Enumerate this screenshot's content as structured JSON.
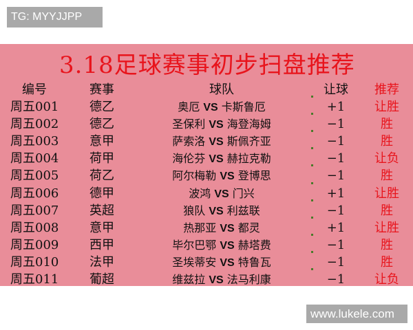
{
  "watermark_top": "TG: MYYJJPP",
  "watermark_bottom": "www.lukele.com",
  "title": "3.18足球赛事初步扫盘推荐",
  "headers": {
    "code": "编号",
    "league": "赛事",
    "teams": "球队",
    "handicap": "让球",
    "recommend": "推荐"
  },
  "vs": "VS",
  "rows": [
    {
      "code": "周五001",
      "league": "德乙",
      "home": "奥厄",
      "away": "卡斯鲁厄",
      "handicap": "+1",
      "recommend": "让胜"
    },
    {
      "code": "周五002",
      "league": "德乙",
      "home": "圣保利",
      "away": "海登海姆",
      "handicap": "−1",
      "recommend": "胜"
    },
    {
      "code": "周五003",
      "league": "意甲",
      "home": "萨索洛",
      "away": "斯佩齐亚",
      "handicap": "−1",
      "recommend": "胜"
    },
    {
      "code": "周五004",
      "league": "荷甲",
      "home": "海伦芬",
      "away": "赫拉克勒",
      "handicap": "−1",
      "recommend": "让负"
    },
    {
      "code": "周五005",
      "league": "荷乙",
      "home": "阿尔梅勒",
      "away": "登博思",
      "handicap": "−1",
      "recommend": "胜"
    },
    {
      "code": "周五006",
      "league": "德甲",
      "home": "波鸿",
      "away": "门兴",
      "handicap": "+1",
      "recommend": "让胜"
    },
    {
      "code": "周五007",
      "league": "英超",
      "home": "狼队",
      "away": "利兹联",
      "handicap": "−1",
      "recommend": "胜"
    },
    {
      "code": "周五008",
      "league": "意甲",
      "home": "热那亚",
      "away": "都灵",
      "handicap": "+1",
      "recommend": "让胜"
    },
    {
      "code": "周五009",
      "league": "西甲",
      "home": "毕尔巴鄂",
      "away": "赫塔费",
      "handicap": "−1",
      "recommend": "胜"
    },
    {
      "code": "周五010",
      "league": "法甲",
      "home": "圣埃蒂安",
      "away": "特鲁瓦",
      "handicap": "−1",
      "recommend": "胜"
    },
    {
      "code": "周五011",
      "league": "葡超",
      "home": "维兹拉",
      "away": "法马利康",
      "handicap": "−1",
      "recommend": "让负"
    }
  ],
  "colors": {
    "background": "#e98d99",
    "accent": "#e8141c"
  }
}
